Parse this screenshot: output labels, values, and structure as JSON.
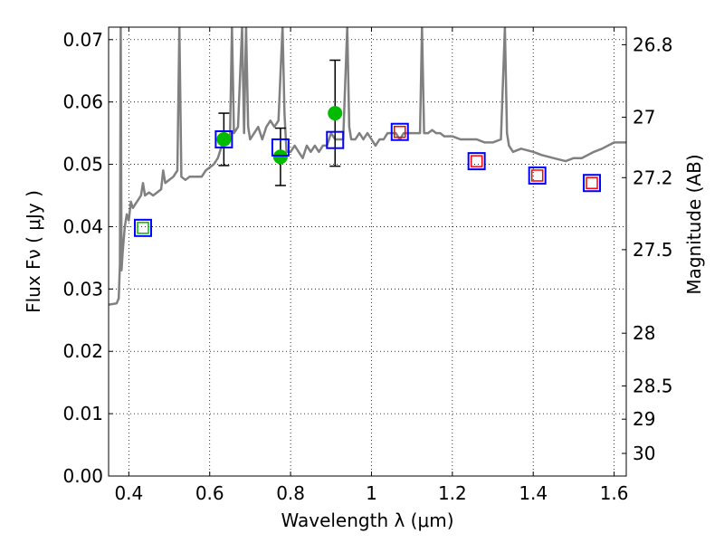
{
  "chart_data": {
    "type": "scatter",
    "xlabel": "Wavelength  λ (μm)",
    "ylabel": "Flux  Fν  ( μJy )",
    "y2label": "Magnitude (AB)",
    "xlim": [
      0.35,
      1.63
    ],
    "ylim": [
      0.0,
      0.072
    ],
    "grid": true,
    "x_ticks": [
      {
        "value": 0.4,
        "label": "0.4"
      },
      {
        "value": 0.6,
        "label": "0.6"
      },
      {
        "value": 0.8,
        "label": "0.8"
      },
      {
        "value": 1.0,
        "label": "1"
      },
      {
        "value": 1.2,
        "label": "1.2"
      },
      {
        "value": 1.4,
        "label": "1.4"
      },
      {
        "value": 1.6,
        "label": "1.6"
      }
    ],
    "y_ticks": [
      {
        "value": 0.0,
        "label": "0.00"
      },
      {
        "value": 0.01,
        "label": "0.01"
      },
      {
        "value": 0.02,
        "label": "0.02"
      },
      {
        "value": 0.03,
        "label": "0.03"
      },
      {
        "value": 0.04,
        "label": "0.04"
      },
      {
        "value": 0.05,
        "label": "0.05"
      },
      {
        "value": 0.06,
        "label": "0.06"
      },
      {
        "value": 0.07,
        "label": "0.07"
      }
    ],
    "y2_ticks": [
      {
        "value": 26.8,
        "label": "26.8"
      },
      {
        "value": 27.0,
        "label": "27"
      },
      {
        "value": 27.2,
        "label": "27.2"
      },
      {
        "value": 27.5,
        "label": "27.5"
      },
      {
        "value": 28.0,
        "label": "28"
      },
      {
        "value": 28.5,
        "label": "28.5"
      },
      {
        "value": 29.0,
        "label": "29"
      },
      {
        "value": 30.0,
        "label": "30"
      }
    ],
    "series": [
      {
        "kind": "line",
        "color": "#808080",
        "x": [
          0.35,
          0.37,
          0.375,
          0.378,
          0.38,
          0.382,
          0.385,
          0.39,
          0.395,
          0.4,
          0.405,
          0.41,
          0.42,
          0.43,
          0.435,
          0.44,
          0.45,
          0.46,
          0.47,
          0.48,
          0.485,
          0.49,
          0.5,
          0.51,
          0.52,
          0.525,
          0.53,
          0.54,
          0.55,
          0.56,
          0.57,
          0.58,
          0.59,
          0.6,
          0.61,
          0.62,
          0.63,
          0.635,
          0.64,
          0.65,
          0.655,
          0.66,
          0.67,
          0.68,
          0.685,
          0.69,
          0.695,
          0.7,
          0.71,
          0.72,
          0.73,
          0.74,
          0.75,
          0.76,
          0.77,
          0.78,
          0.785,
          0.79,
          0.8,
          0.81,
          0.82,
          0.83,
          0.84,
          0.85,
          0.86,
          0.87,
          0.88,
          0.89,
          0.9,
          0.91,
          0.92,
          0.93,
          0.94,
          0.945,
          0.95,
          0.96,
          0.97,
          0.98,
          0.99,
          1.0,
          1.01,
          1.02,
          1.03,
          1.04,
          1.05,
          1.06,
          1.07,
          1.08,
          1.09,
          1.1,
          1.11,
          1.12,
          1.125,
          1.13,
          1.14,
          1.15,
          1.16,
          1.17,
          1.18,
          1.2,
          1.22,
          1.24,
          1.26,
          1.28,
          1.3,
          1.32,
          1.33,
          1.335,
          1.34,
          1.35,
          1.37,
          1.4,
          1.42,
          1.45,
          1.48,
          1.5,
          1.52,
          1.55,
          1.57,
          1.6,
          1.63
        ],
        "y": [
          0.0275,
          0.0277,
          0.0285,
          0.034,
          0.072,
          0.033,
          0.036,
          0.04,
          0.042,
          0.041,
          0.044,
          0.043,
          0.044,
          0.045,
          0.047,
          0.045,
          0.0455,
          0.045,
          0.0455,
          0.046,
          0.049,
          0.047,
          0.0475,
          0.048,
          0.049,
          0.072,
          0.048,
          0.0475,
          0.048,
          0.048,
          0.048,
          0.048,
          0.049,
          0.0495,
          0.05,
          0.051,
          0.053,
          0.055,
          0.054,
          0.054,
          0.072,
          0.055,
          0.056,
          0.072,
          0.055,
          0.072,
          0.056,
          0.054,
          0.055,
          0.056,
          0.054,
          0.056,
          0.057,
          0.056,
          0.057,
          0.072,
          0.058,
          0.052,
          0.052,
          0.053,
          0.052,
          0.051,
          0.053,
          0.052,
          0.053,
          0.052,
          0.053,
          0.053,
          0.055,
          0.054,
          0.054,
          0.054,
          0.072,
          0.056,
          0.054,
          0.054,
          0.055,
          0.054,
          0.055,
          0.054,
          0.053,
          0.054,
          0.054,
          0.055,
          0.055,
          0.055,
          0.054,
          0.055,
          0.055,
          0.055,
          0.055,
          0.055,
          0.072,
          0.055,
          0.055,
          0.0555,
          0.055,
          0.055,
          0.0545,
          0.0545,
          0.054,
          0.054,
          0.054,
          0.0535,
          0.0535,
          0.054,
          0.072,
          0.055,
          0.053,
          0.052,
          0.0525,
          0.052,
          0.0515,
          0.051,
          0.0505,
          0.051,
          0.051,
          0.052,
          0.0525,
          0.0535,
          0.0535
        ]
      },
      {
        "kind": "errorbar",
        "marker": "circle",
        "color": "#00bb00",
        "errcolor": "#000000",
        "x": [
          0.635,
          0.775,
          0.91
        ],
        "y": [
          0.054,
          0.0512,
          0.0582
        ],
        "yerr": [
          0.0042,
          0.0046,
          0.0085
        ]
      },
      {
        "kind": "scatter",
        "marker": "square-open",
        "color": "#0000ff",
        "x": [
          0.435,
          0.635,
          0.775,
          0.91,
          1.07,
          1.26,
          1.41,
          1.545
        ],
        "y": [
          0.0398,
          0.054,
          0.0527,
          0.0539,
          0.0552,
          0.0505,
          0.0482,
          0.047
        ]
      },
      {
        "kind": "scatter",
        "marker": "square-open-small",
        "color": "#ff0000",
        "x": [
          1.07,
          1.26,
          1.41,
          1.545
        ],
        "y": [
          0.0552,
          0.0505,
          0.0482,
          0.047
        ]
      },
      {
        "kind": "scatter",
        "marker": "square-open-small",
        "color": "#00bb00",
        "x": [
          0.435
        ],
        "y": [
          0.0398
        ]
      }
    ]
  }
}
